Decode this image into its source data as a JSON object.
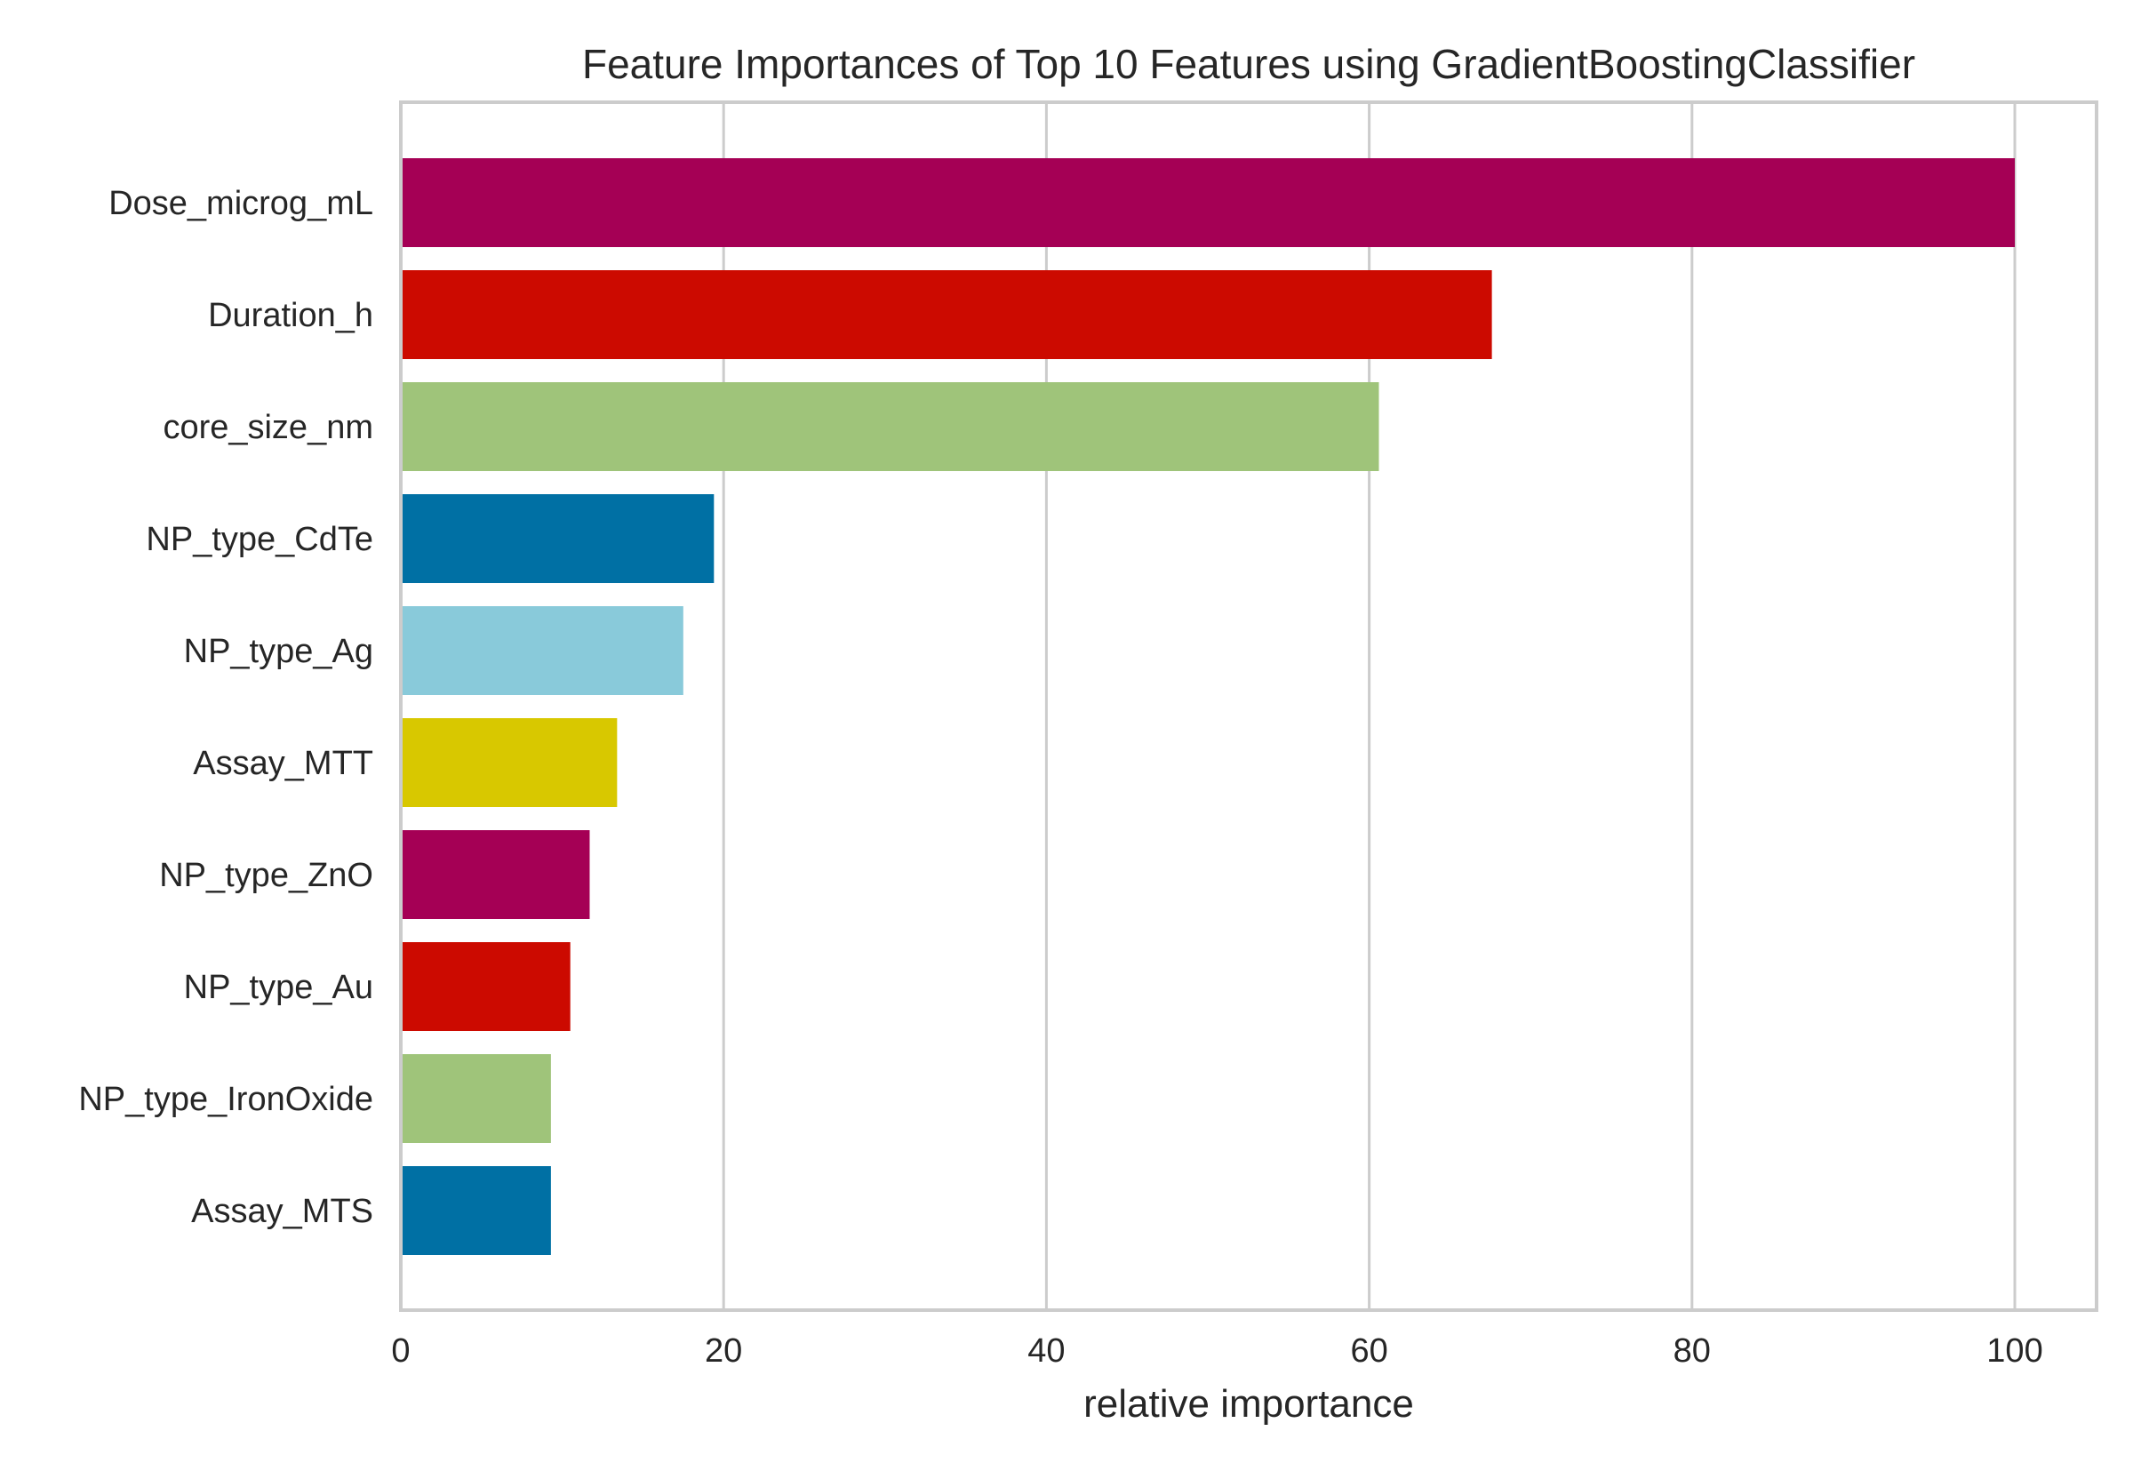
{
  "chart_data": {
    "type": "bar",
    "orientation": "horizontal",
    "title": "Feature Importances of Top 10 Features using GradientBoostingClassifier",
    "xlabel": "relative importance",
    "ylabel": "",
    "xlim": [
      0,
      105
    ],
    "xticks": [
      0,
      20,
      40,
      60,
      80,
      100
    ],
    "grid": true,
    "legend": "none",
    "categories": [
      "Dose_microg_mL",
      "Duration_h",
      "core_size_nm",
      "NP_type_CdTe",
      "NP_type_Ag",
      "Assay_MTT",
      "NP_type_ZnO",
      "NP_type_Au",
      "NP_type_IronOxide",
      "Assay_MTS"
    ],
    "values": [
      100,
      67.6,
      60.6,
      19.4,
      17.5,
      13.4,
      11.7,
      10.5,
      9.3,
      9.3
    ],
    "colors": [
      "#a50055",
      "#cc0a00",
      "#9fc47a",
      "#0070a4",
      "#89cada",
      "#d8c800",
      "#a50055",
      "#cc0a00",
      "#9fc47a",
      "#0070a4"
    ],
    "grid_color": "#cccccc",
    "frame_color": "#cccccc"
  }
}
